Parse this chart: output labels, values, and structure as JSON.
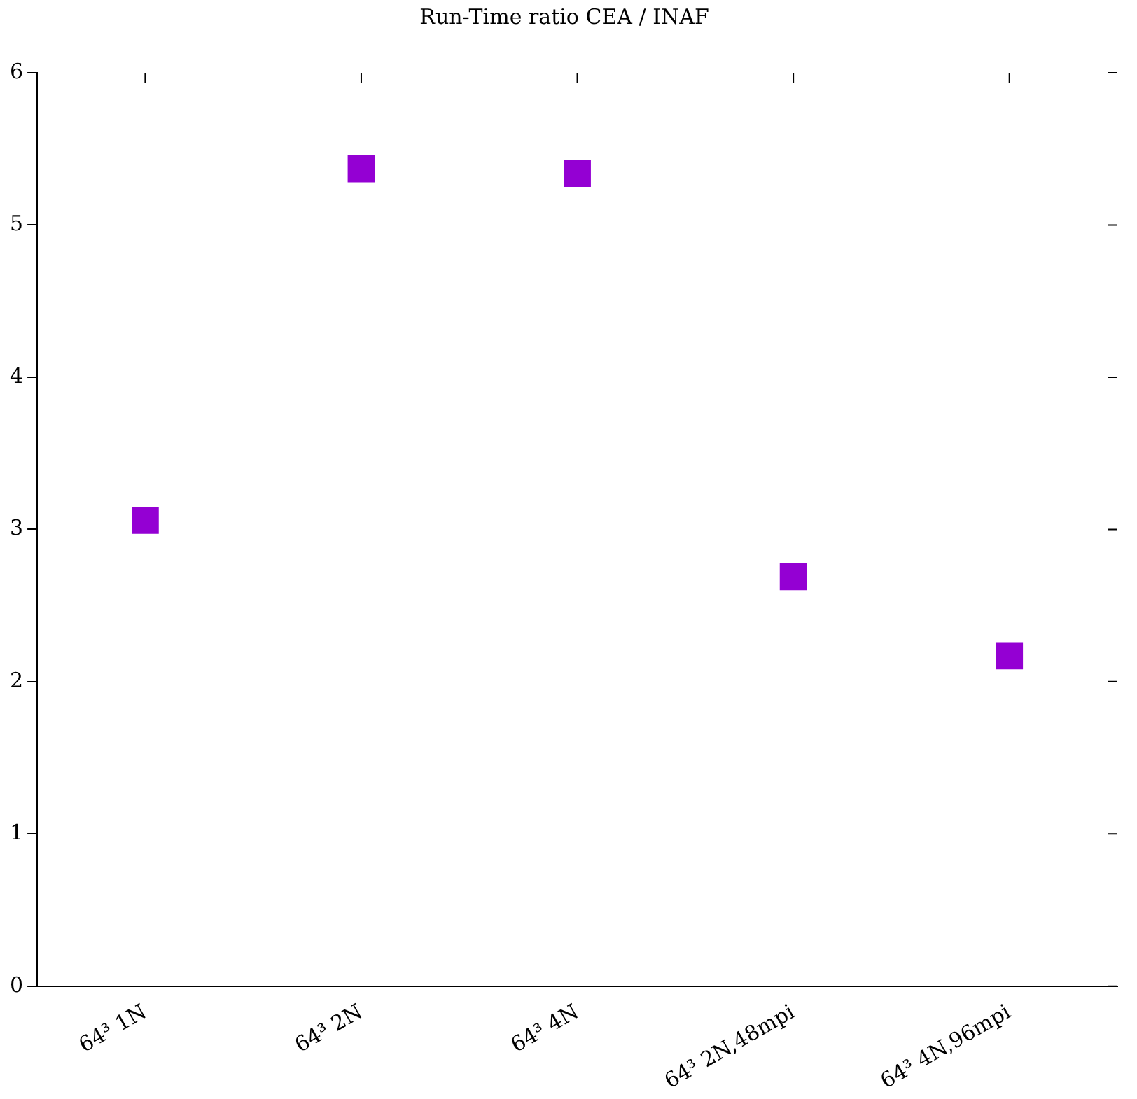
{
  "chart_data": {
    "type": "scatter",
    "title": "Run-Time ratio CEA / INAF",
    "categories": [
      "64³ 1N",
      "64³ 2N",
      "64³ 4N",
      "64³ 2N,48mpi",
      "64³ 4N,96mpi"
    ],
    "values": [
      3.06,
      5.37,
      5.34,
      2.69,
      2.17
    ],
    "color": "#9400d3",
    "marker": "square",
    "ylim": [
      0,
      6
    ],
    "yticks": [
      0,
      1,
      2,
      3,
      4,
      5,
      6
    ]
  }
}
